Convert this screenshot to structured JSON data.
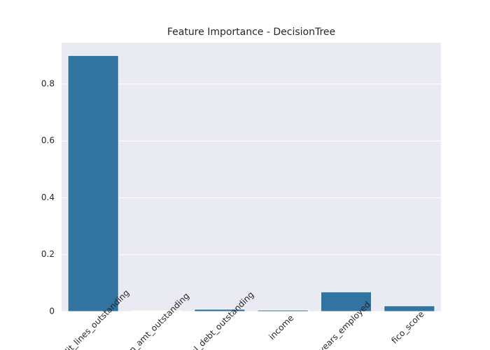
{
  "chart_data": {
    "type": "bar",
    "title": "Feature Importance - DecisionTree",
    "categories": [
      "credit_lines_outstanding",
      "loan_amt_outstanding",
      "total_debt_outstanding",
      "income",
      "years_employed",
      "fico_score"
    ],
    "values": [
      0.9,
      0.002,
      0.008,
      0.005,
      0.069,
      0.02
    ],
    "color": "#3274a1",
    "ylim": [
      0,
      0.945
    ],
    "yticks": [
      0.0,
      0.2,
      0.4,
      0.6,
      0.8
    ],
    "grid": true
  }
}
